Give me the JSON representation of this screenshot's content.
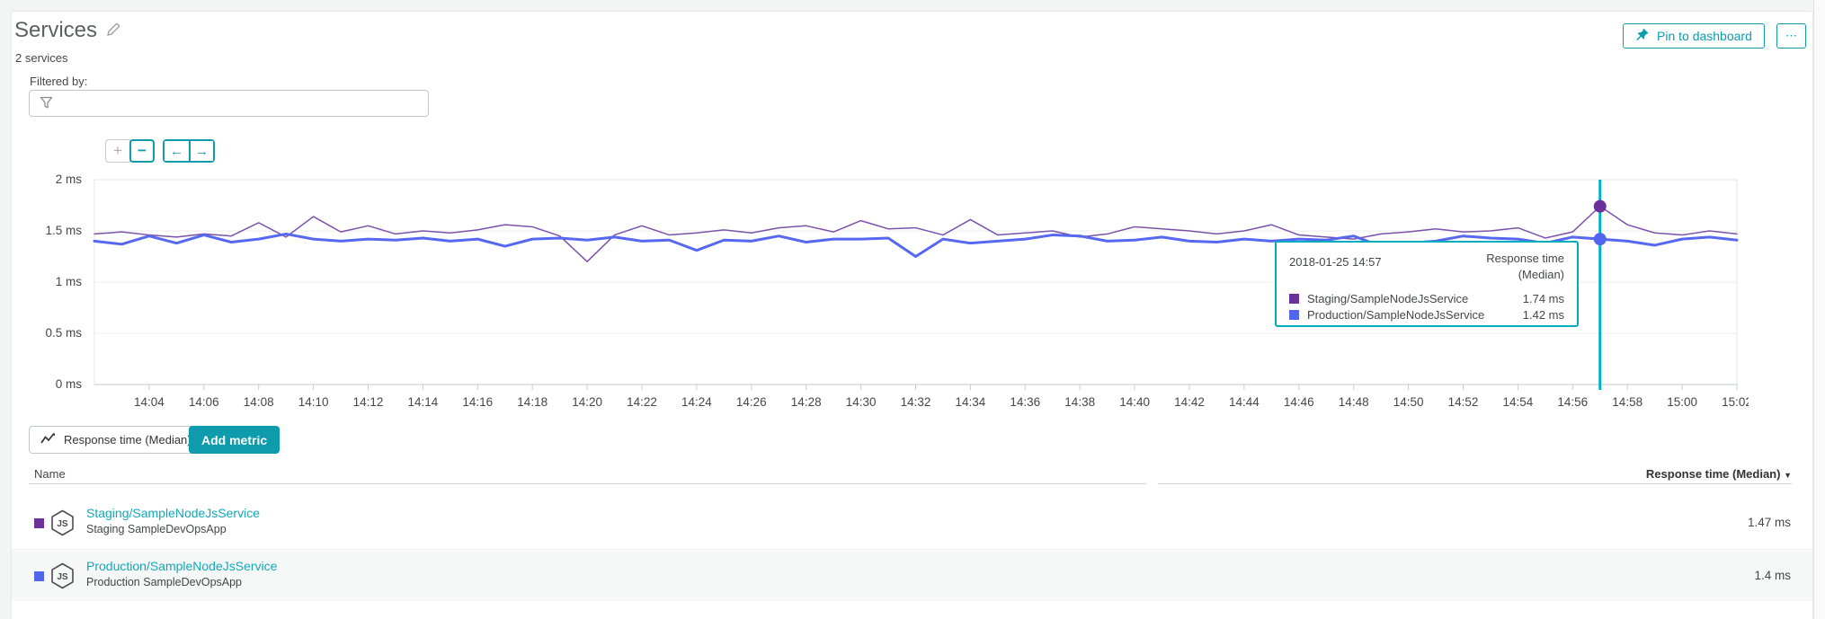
{
  "page": {
    "title": "Services",
    "subtitle": "2 services"
  },
  "header": {
    "pin_button": "Pin to dashboard",
    "more_button": "⋯"
  },
  "filter": {
    "label": "Filtered by:",
    "value": "",
    "placeholder": ""
  },
  "controls": {
    "zoom_in": "+",
    "zoom_out": "−",
    "pan_left": "←",
    "pan_right": "→"
  },
  "colors": {
    "accent_teal": "#0e9cac",
    "crosshair_teal": "#00b1c4",
    "link_teal": "#13a8b8",
    "staging_purple": "#6c2f9e",
    "production_blue": "#5165ef"
  },
  "chart_data": {
    "type": "line",
    "title": "Response time (Median)",
    "unit": "ms",
    "ylim": [
      0,
      2
    ],
    "grid": true,
    "legend_position": "table-below",
    "y_ticks": [
      {
        "label": "2 ms",
        "value": 2
      },
      {
        "label": "1.5 ms",
        "value": 1.5
      },
      {
        "label": "1 ms",
        "value": 1
      },
      {
        "label": "0.5 ms",
        "value": 0.5
      },
      {
        "label": "0 ms",
        "value": 0
      }
    ],
    "x_start": "14:02",
    "x_end": "15:02",
    "minutes_span": 60,
    "x_tick_start_min": 2,
    "x_tick_step_min": 2,
    "x_ticks": [
      "14:04",
      "14:06",
      "14:08",
      "14:10",
      "14:12",
      "14:14",
      "14:16",
      "14:18",
      "14:20",
      "14:22",
      "14:24",
      "14:26",
      "14:28",
      "14:30",
      "14:32",
      "14:34",
      "14:36",
      "14:38",
      "14:40",
      "14:42",
      "14:44",
      "14:46",
      "14:48",
      "14:50",
      "14:52",
      "14:54",
      "14:56",
      "14:58",
      "15:00",
      "15:02"
    ],
    "crosshair": {
      "time": "14:57",
      "minute_offset": 55,
      "color": "#00b1c4"
    },
    "series": [
      {
        "name": "Staging/SampleNodeJsService",
        "color": "#7b52ab",
        "marker_color": "#6c2f9e",
        "stroke_width": 1.5,
        "values": [
          1.47,
          1.49,
          1.46,
          1.44,
          1.47,
          1.45,
          1.58,
          1.44,
          1.64,
          1.49,
          1.55,
          1.47,
          1.5,
          1.48,
          1.51,
          1.56,
          1.54,
          1.45,
          1.2,
          1.46,
          1.55,
          1.46,
          1.48,
          1.51,
          1.48,
          1.53,
          1.55,
          1.49,
          1.6,
          1.52,
          1.53,
          1.46,
          1.61,
          1.46,
          1.48,
          1.5,
          1.44,
          1.47,
          1.54,
          1.52,
          1.5,
          1.47,
          1.5,
          1.56,
          1.46,
          1.44,
          1.42,
          1.47,
          1.49,
          1.52,
          1.49,
          1.5,
          1.53,
          1.43,
          1.49,
          1.74,
          1.56,
          1.48,
          1.46,
          1.5,
          1.47
        ]
      },
      {
        "name": "Production/SampleNodeJsService",
        "color": "#5568ef",
        "marker_color": "#5165ef",
        "stroke_width": 3,
        "values": [
          1.4,
          1.37,
          1.45,
          1.38,
          1.46,
          1.39,
          1.42,
          1.47,
          1.42,
          1.4,
          1.42,
          1.41,
          1.43,
          1.4,
          1.42,
          1.35,
          1.42,
          1.43,
          1.41,
          1.44,
          1.4,
          1.41,
          1.31,
          1.41,
          1.4,
          1.45,
          1.39,
          1.42,
          1.42,
          1.43,
          1.25,
          1.42,
          1.38,
          1.4,
          1.42,
          1.46,
          1.45,
          1.4,
          1.41,
          1.44,
          1.4,
          1.39,
          1.42,
          1.4,
          1.42,
          1.41,
          1.45,
          1.35,
          1.38,
          1.4,
          1.45,
          1.43,
          1.42,
          1.38,
          1.44,
          1.42,
          1.4,
          1.36,
          1.42,
          1.44,
          1.41
        ]
      }
    ]
  },
  "tooltip": {
    "timestamp": "2018-01-25 14:57",
    "metric": "Response time (Median)",
    "rows": [
      {
        "name": "Staging/SampleNodeJsService",
        "value": "1.74 ms",
        "color": "#6c2f9e"
      },
      {
        "name": "Production/SampleNodeJsService",
        "value": "1.42 ms",
        "color": "#5165ef"
      }
    ]
  },
  "metric_bar": {
    "metric_button": "Response time (Median)",
    "add_metric_button": "Add metric"
  },
  "table": {
    "name_header": "Name",
    "value_header": "Response time (Median)",
    "sort_indicator": "▼",
    "rows": [
      {
        "name": "Staging/SampleNodeJsService",
        "subtitle": "Staging SampleDevOpsApp",
        "value": "1.47 ms",
        "color": "#6c2f9e"
      },
      {
        "name": "Production/SampleNodeJsService",
        "subtitle": "Production SampleDevOpsApp",
        "value": "1.4 ms",
        "color": "#5165ef"
      }
    ]
  }
}
